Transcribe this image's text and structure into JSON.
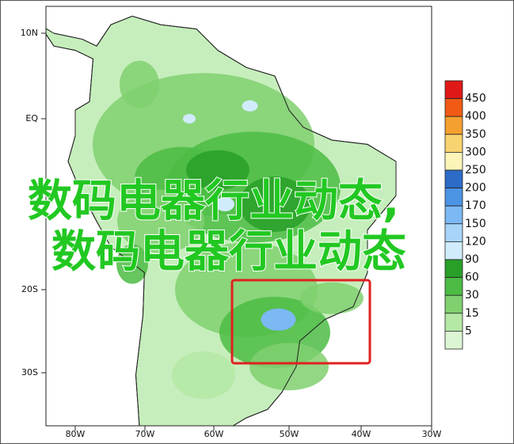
{
  "map": {
    "lat_labels": [
      "10N",
      "EQ",
      "20S",
      "30S"
    ],
    "lon_labels": [
      "80W",
      "70W",
      "60W",
      "50W",
      "40W",
      "30W"
    ],
    "colorbar": {
      "labels": [
        450,
        400,
        350,
        300,
        250,
        200,
        170,
        150,
        120,
        90,
        60,
        30,
        15,
        5
      ],
      "colors": [
        "#e01818",
        "#f05a14",
        "#f4a030",
        "#f8d470",
        "#fcf4b8",
        "#2c6cc8",
        "#4c94e4",
        "#7cb8f4",
        "#a8d4fa",
        "#d0ecfc",
        "#28a028",
        "#4cbc44",
        "#80d070",
        "#b4e8a4",
        "#dcf6d4"
      ]
    }
  },
  "overlay": {
    "line1": "数码电器行业动态,",
    "line2": "数码电器行业动态"
  }
}
